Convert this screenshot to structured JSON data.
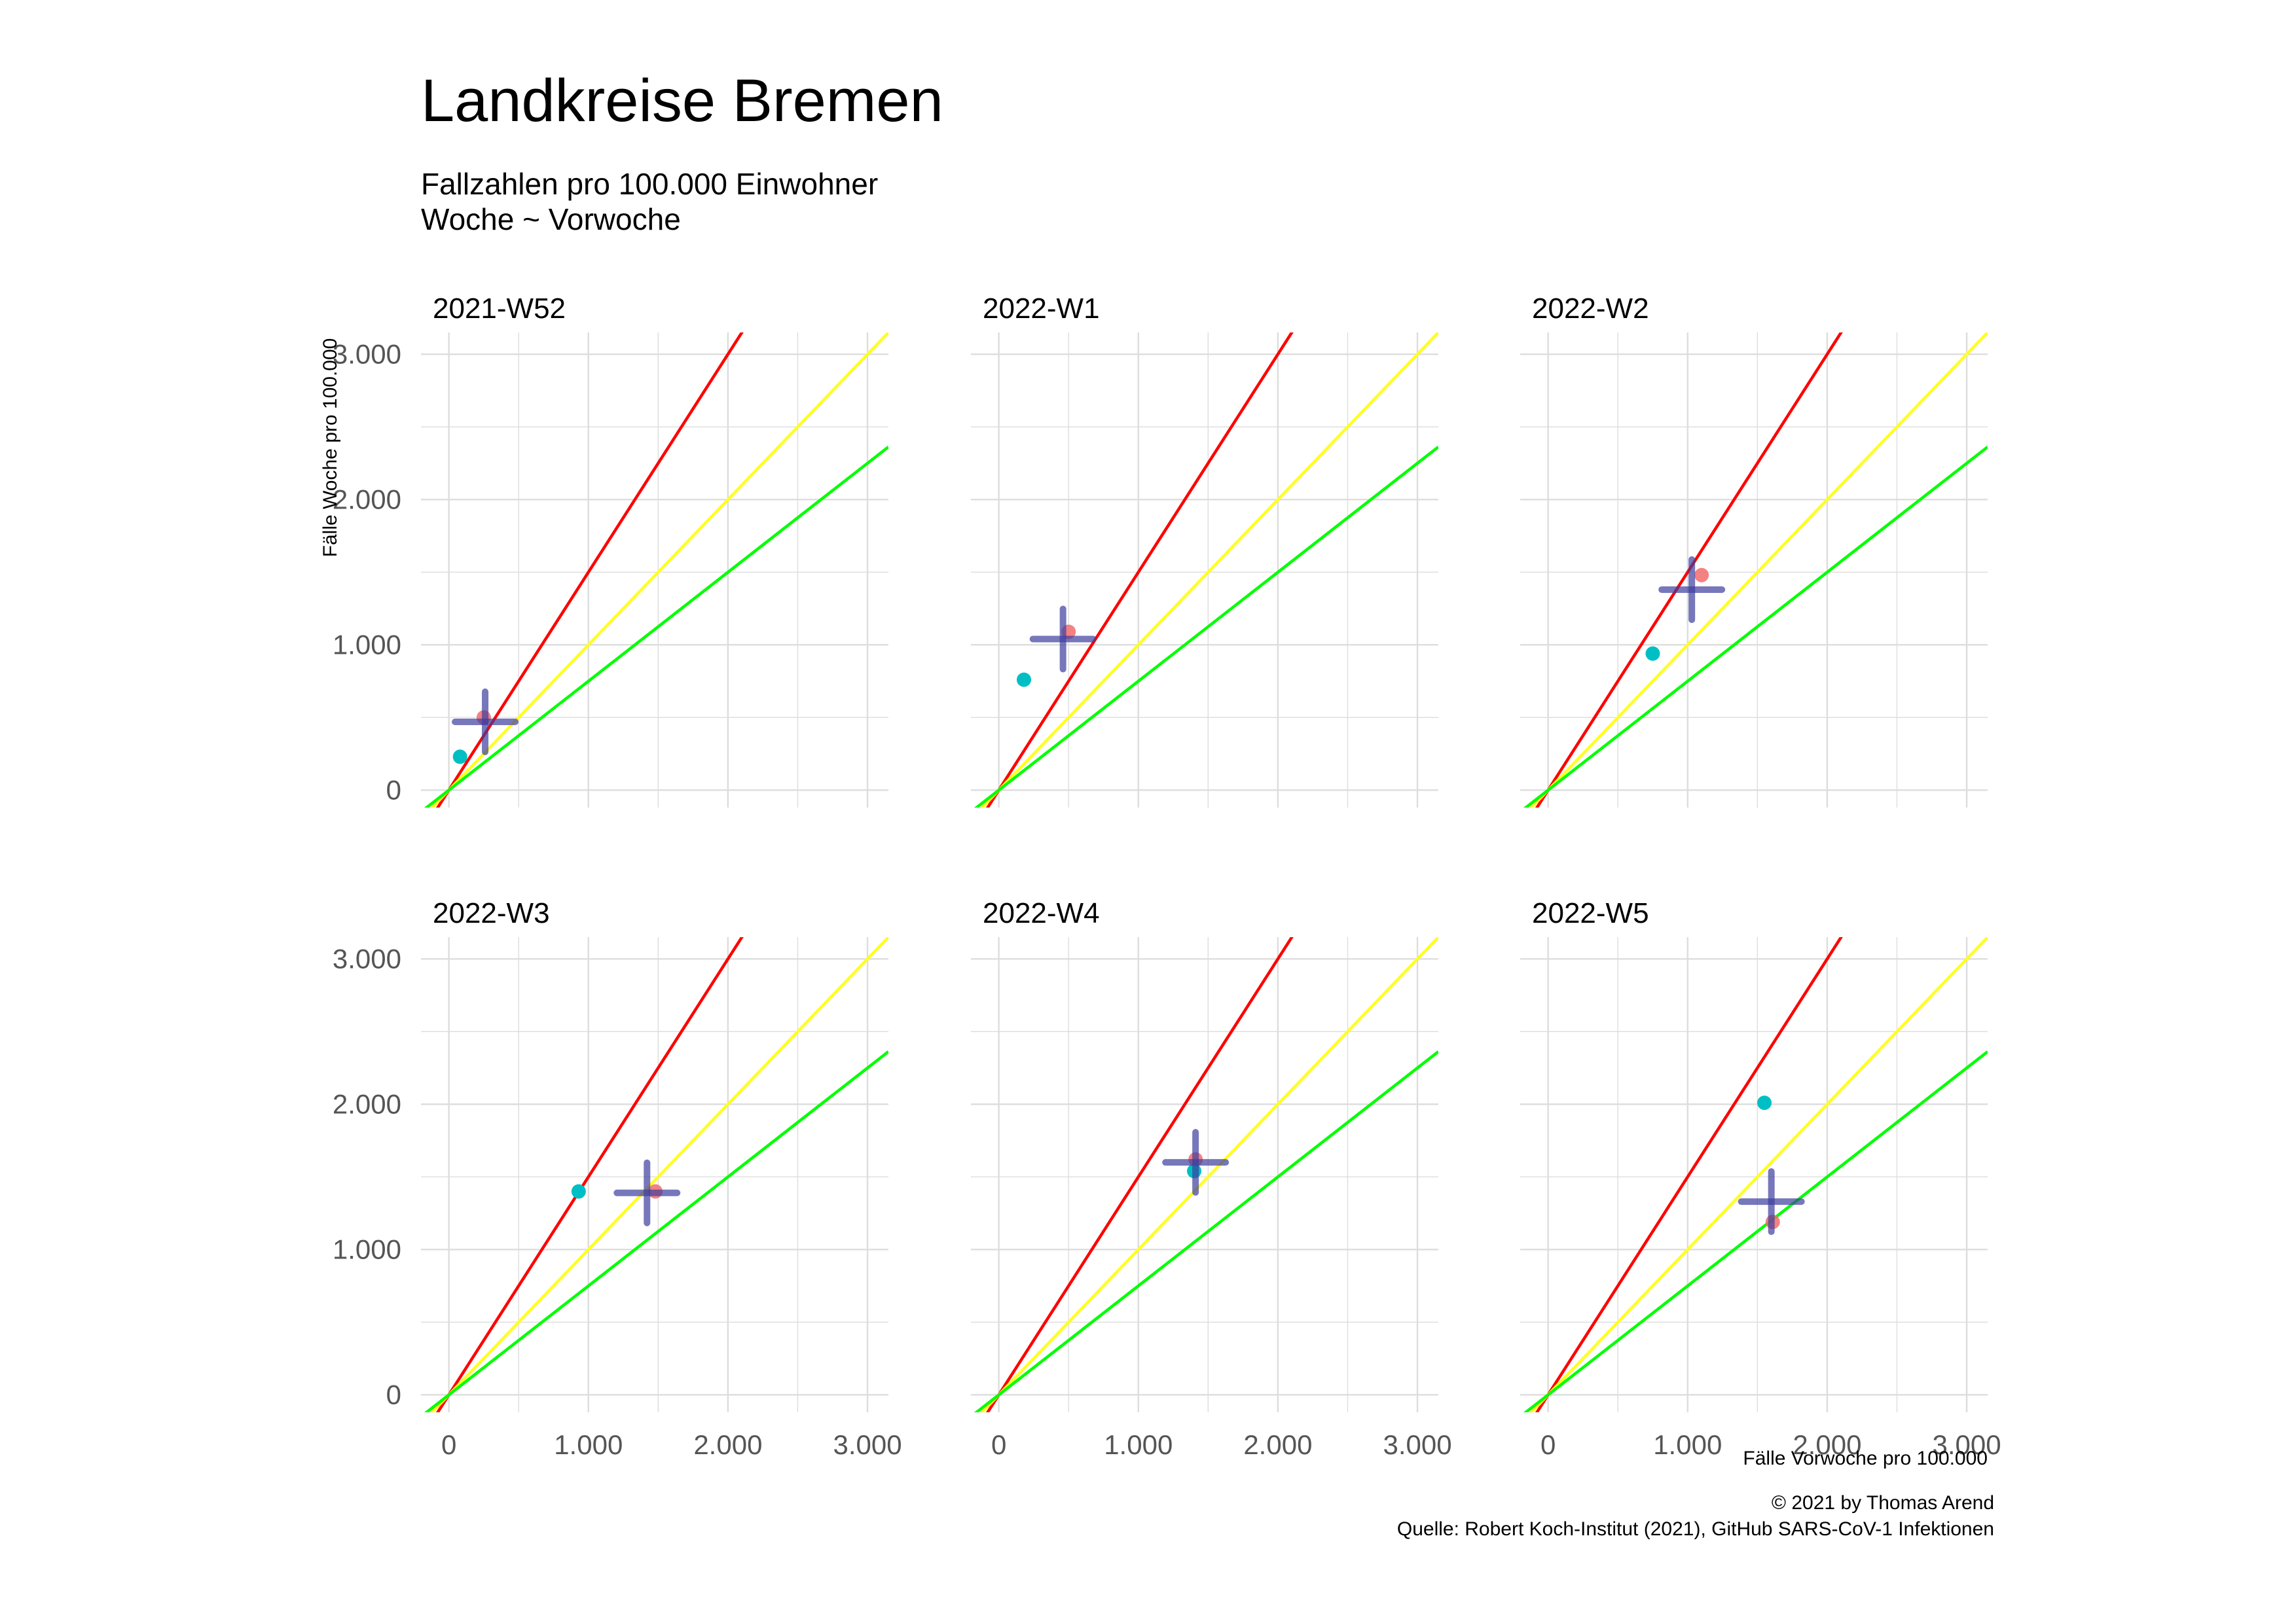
{
  "title": "Landkreise Bremen",
  "subtitle_line1": "Fallzahlen pro 100.000 Einwohner",
  "subtitle_line2": "Woche ~ Vorwoche",
  "caption_line1": "© 2021 by Thomas Arend",
  "caption_line2": "Quelle: Robert Koch-Institut (2021), GitHub SARS-CoV-1 Infektionen",
  "colors": {
    "red_line": "#ff0000",
    "yellow_line": "#ffff22",
    "green_line": "#00ff00",
    "point_red": "#f26c6c",
    "point_cyan": "#00bfc4",
    "cross": "#3d3d9e",
    "grid": "#dddddd",
    "tick_label": "#555555"
  },
  "chart_data": {
    "type": "scatter",
    "xlabel": "Fälle Vorwoche pro 100.000",
    "ylabel": "Fälle Woche pro 100.000",
    "xlim": [
      -200,
      3150
    ],
    "ylim": [
      -120,
      3150
    ],
    "x_ticks": [
      0,
      1000,
      2000,
      3000
    ],
    "x_tick_labels": [
      "0",
      "1.000",
      "2.000",
      "3.000"
    ],
    "y_ticks": [
      0,
      1000,
      2000,
      3000
    ],
    "y_tick_labels": [
      "0",
      "1.000",
      "2.000",
      "3.000"
    ],
    "grid": true,
    "reference_lines": [
      {
        "color": "red",
        "slope": 1.5
      },
      {
        "color": "yellow",
        "slope": 1.0
      },
      {
        "color": "green",
        "slope": 0.75
      }
    ],
    "panels": [
      {
        "label": "2021-W52",
        "points": [
          {
            "x": 250,
            "y": 500,
            "color": "red"
          },
          {
            "x": 80,
            "y": 230,
            "color": "cyan"
          }
        ],
        "cross": {
          "x": 260,
          "y": 470
        }
      },
      {
        "label": "2022-W1",
        "points": [
          {
            "x": 500,
            "y": 1090,
            "color": "red"
          },
          {
            "x": 180,
            "y": 760,
            "color": "cyan"
          }
        ],
        "cross": {
          "x": 460,
          "y": 1040
        }
      },
      {
        "label": "2022-W2",
        "points": [
          {
            "x": 1100,
            "y": 1480,
            "color": "red"
          },
          {
            "x": 750,
            "y": 940,
            "color": "cyan"
          }
        ],
        "cross": {
          "x": 1030,
          "y": 1380
        }
      },
      {
        "label": "2022-W3",
        "points": [
          {
            "x": 1480,
            "y": 1400,
            "color": "red"
          },
          {
            "x": 930,
            "y": 1400,
            "color": "cyan"
          }
        ],
        "cross": {
          "x": 1420,
          "y": 1390
        }
      },
      {
        "label": "2022-W4",
        "points": [
          {
            "x": 1410,
            "y": 1620,
            "color": "red"
          },
          {
            "x": 1400,
            "y": 1540,
            "color": "cyan"
          }
        ],
        "cross": {
          "x": 1410,
          "y": 1600
        }
      },
      {
        "label": "2022-W5",
        "points": [
          {
            "x": 1610,
            "y": 1190,
            "color": "red"
          },
          {
            "x": 1550,
            "y": 2010,
            "color": "cyan"
          }
        ],
        "cross": {
          "x": 1600,
          "y": 1330
        }
      }
    ]
  }
}
